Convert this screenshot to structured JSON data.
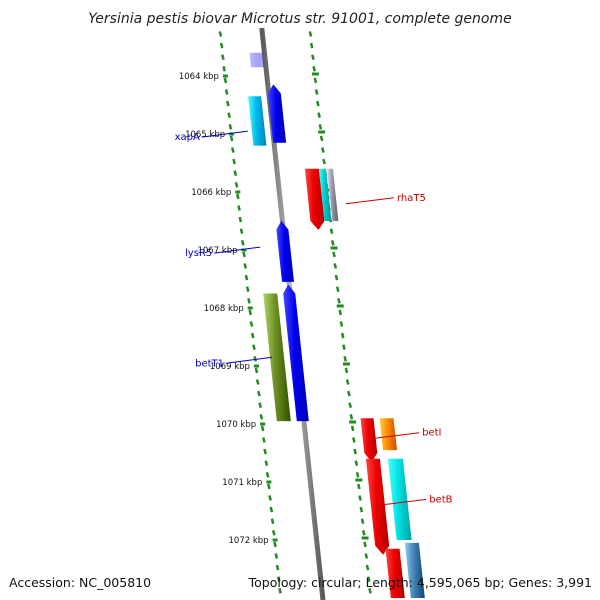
{
  "title": "Yersinia pestis biovar Microtus str. 91001, complete genome",
  "footer": {
    "accession": "Accession: NC_005810",
    "summary": "Topology: circular; Length: 4,595,065 bp; Genes: 3,991"
  },
  "colors": {
    "backbone": "#808080",
    "tick": "#228B22",
    "left_label": "#0000cc",
    "right_label": "#cc0000"
  },
  "ticks": [
    "1064 kbp",
    "1065 kbp",
    "1066 kbp",
    "1067 kbp",
    "1068 kbp",
    "1069 kbp",
    "1070 kbp",
    "1071 kbp",
    "1072 kbp"
  ],
  "features": [
    {
      "id": "top-blue",
      "strand": "forward",
      "kbp_start": 1063.6,
      "kbp_end": 1063.85,
      "color": "#0000ee",
      "pale": true
    },
    {
      "id": "xapA-a",
      "strand": "forward",
      "kbp_start": 1064.35,
      "kbp_end": 1065.2,
      "color": "#00bbee"
    },
    {
      "id": "xapA-b",
      "strand": "forward",
      "kbp_start": 1064.3,
      "kbp_end": 1065.15,
      "color": "#0000ee",
      "arrow": "up"
    },
    {
      "id": "rhaT5-a",
      "strand": "reverse",
      "kbp_start": 1065.6,
      "kbp_end": 1066.5,
      "color": "#ee0000",
      "arrow": "down"
    },
    {
      "id": "rhaT5-b",
      "strand": "reverse",
      "kbp_start": 1065.6,
      "kbp_end": 1066.5,
      "color": "#00cccc"
    },
    {
      "id": "rhaT5-c",
      "strand": "reverse",
      "kbp_start": 1065.6,
      "kbp_end": 1066.5,
      "color": "#9999aa"
    },
    {
      "id": "lysR5",
      "strand": "forward",
      "kbp_start": 1066.65,
      "kbp_end": 1067.55,
      "color": "#0000ee",
      "arrow": "up"
    },
    {
      "id": "betT1-a",
      "strand": "forward",
      "kbp_start": 1067.75,
      "kbp_end": 1069.95,
      "color": "#6b8e23"
    },
    {
      "id": "betT1-b",
      "strand": "forward",
      "kbp_start": 1067.75,
      "kbp_end": 1069.95,
      "color": "#0000ee",
      "arrow": "up"
    },
    {
      "id": "betI-a",
      "strand": "reverse",
      "kbp_start": 1069.9,
      "kbp_end": 1070.5,
      "color": "#ee0000",
      "arrow": "down"
    },
    {
      "id": "betI-b",
      "strand": "reverse",
      "kbp_start": 1069.9,
      "kbp_end": 1070.45,
      "color": "#ff8c00"
    },
    {
      "id": "betB-a",
      "strand": "reverse",
      "kbp_start": 1070.6,
      "kbp_end": 1072.1,
      "color": "#ee0000",
      "arrow": "down"
    },
    {
      "id": "betB-b",
      "strand": "reverse",
      "kbp_start": 1070.6,
      "kbp_end": 1072.0,
      "color": "#00e0e0"
    },
    {
      "id": "next-a",
      "strand": "reverse",
      "kbp_start": 1072.15,
      "kbp_end": 1073.0,
      "color": "#ee0000"
    },
    {
      "id": "next-b",
      "strand": "reverse",
      "kbp_start": 1072.05,
      "kbp_end": 1073.0,
      "color": "#4682b4"
    }
  ],
  "labels": [
    {
      "text": "xapA",
      "side": "left",
      "kbp": 1064.95
    },
    {
      "text": "lysR5",
      "side": "left",
      "kbp": 1066.95
    },
    {
      "text": "betT1",
      "side": "left",
      "kbp": 1068.85
    },
    {
      "text": "rhaT5",
      "side": "right",
      "kbp": 1066.1
    },
    {
      "text": "betI",
      "side": "right",
      "kbp": 1070.15
    },
    {
      "text": "betB",
      "side": "right",
      "kbp": 1071.3
    }
  ]
}
